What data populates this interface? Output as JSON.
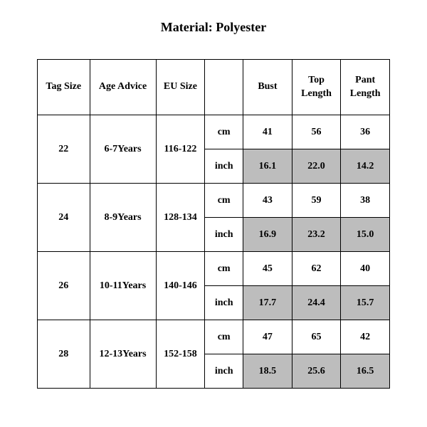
{
  "title": "Material: Polyester",
  "table": {
    "columns": [
      "Tag Size",
      "Age Advice",
      "EU Size",
      "",
      "Bust",
      "Top Length",
      "Pant Length"
    ],
    "unit_cm": "cm",
    "unit_inch": "inch",
    "inch_bg": "#bdbdbd",
    "border_color": "#000000",
    "rows": [
      {
        "tag": "22",
        "age": "6-7Years",
        "eu": "116-122",
        "cm": {
          "bust": "41",
          "top": "56",
          "pant": "36"
        },
        "inch": {
          "bust": "16.1",
          "top": "22.0",
          "pant": "14.2"
        }
      },
      {
        "tag": "24",
        "age": "8-9Years",
        "eu": "128-134",
        "cm": {
          "bust": "43",
          "top": "59",
          "pant": "38"
        },
        "inch": {
          "bust": "16.9",
          "top": "23.2",
          "pant": "15.0"
        }
      },
      {
        "tag": "26",
        "age": "10-11Years",
        "eu": "140-146",
        "cm": {
          "bust": "45",
          "top": "62",
          "pant": "40"
        },
        "inch": {
          "bust": "17.7",
          "top": "24.4",
          "pant": "15.7"
        }
      },
      {
        "tag": "28",
        "age": "12-13Years",
        "eu": "152-158",
        "cm": {
          "bust": "47",
          "top": "65",
          "pant": "42"
        },
        "inch": {
          "bust": "18.5",
          "top": "25.6",
          "pant": "16.5"
        }
      }
    ]
  }
}
